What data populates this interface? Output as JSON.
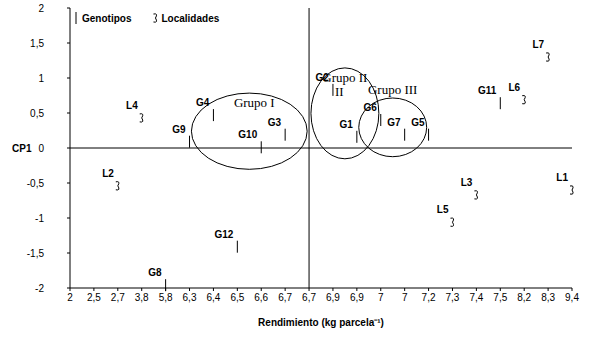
{
  "chart_data": {
    "type": "scatter",
    "x_label": "Rendimiento (kg parcela⁻¹)",
    "y_label": "CP1",
    "categories": [
      "2",
      "2,5",
      "2,7",
      "3,8",
      "5,8",
      "6,3",
      "6,4",
      "6,5",
      "6,6",
      "6,7",
      "6,7",
      "6,9",
      "6,9",
      "7",
      "7",
      "7,2",
      "7,3",
      "7,4",
      "7,5",
      "8,2",
      "8,3",
      "9,4"
    ],
    "ylim": [
      -2,
      2
    ],
    "yticks": [
      -2,
      {
        "value": -1.5,
        "label": "-1,5"
      },
      -1,
      {
        "value": -0.5,
        "label": "-0,5"
      },
      0,
      {
        "value": 0.5,
        "label": "0,5"
      },
      1,
      {
        "value": 1.5,
        "label": "1,5"
      },
      2
    ],
    "reference_lines": {
      "x": 10,
      "y": 0
    },
    "legend": "top-left",
    "series": [
      {
        "name": "Genotipos",
        "marker": "tick",
        "color": "#000000",
        "labels": [
          "G1",
          "G2",
          "G3",
          "G4",
          "G5",
          "G6",
          "G7",
          "G8",
          "G9",
          "G10",
          "G11",
          "G12"
        ],
        "x": [
          12,
          11,
          9,
          6,
          15,
          13,
          14,
          4,
          5,
          8,
          18,
          7
        ],
        "values": [
          0.16,
          0.83,
          0.19,
          0.47,
          0.19,
          0.4,
          0.19,
          -1.96,
          0.09,
          0.01,
          0.64,
          -1.41
        ]
      },
      {
        "name": "Localidades",
        "marker": "curl",
        "color": "#000000",
        "labels": [
          "L1",
          "L2",
          "L3",
          "L4",
          "L5",
          "L6",
          "L7"
        ],
        "x": [
          21,
          2,
          17,
          3,
          16,
          19,
          20
        ],
        "values": [
          -0.6,
          -0.54,
          -0.67,
          0.43,
          -1.06,
          0.69,
          1.3
        ]
      }
    ],
    "groups": [
      {
        "name": "Grupo I",
        "members": [
          "G4",
          "G3",
          "G10"
        ]
      },
      {
        "name": "Grupo II",
        "members": [
          "G2",
          "G1"
        ]
      },
      {
        "name": "Grupo III",
        "members": [
          "G6",
          "G7"
        ]
      }
    ],
    "annotations": [
      "II"
    ]
  }
}
